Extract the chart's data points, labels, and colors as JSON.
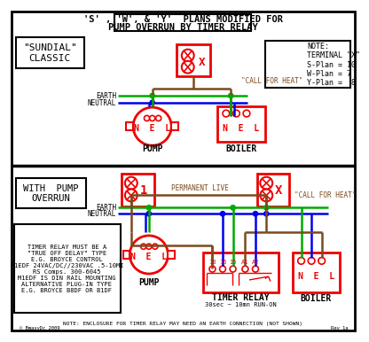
{
  "title_line1": "'S' , 'W', & 'Y'  PLANS MODIFIED FOR",
  "title_line2": "PUMP OVERRUN BY TIMER RELAY",
  "bg_color": "#ffffff",
  "brown": "#7B4A1E",
  "green": "#00AA00",
  "blue": "#0000EE",
  "red": "#EE0000",
  "black": "#000000",
  "note_top": "NOTE:\nTERMINAL \"X\"\nS-Plan = 10\nW-Plan = 7\nY-Plan =  8",
  "note_bottom": "TIMER RELAY MUST BE A\n\"TRUE OFF DELAY\" TYPE\nE.G. BROYCE CONTROL\nM1EDF 24VAC/DC//230VAC .5-10MI\nRS Comps. 300-6045\nM1EDF IS DIN RAIL MOUNTING\nALTERNATIVE PLUG-IN TYPE\nE.G. BROYCE B8DF OR B1DF",
  "note_enclosure": "NOTE: ENCLOSURE FOR TIMER RELAY MAY NEED AN EARTH CONNECTION (NOT SHOWN)",
  "label_sundial": "\"SUNDIAL\"\nCLASSIC",
  "label_pump_overrun": "WITH  PUMP\nOVERRUN",
  "label_earth": "EARTH",
  "label_neutral": "NEUTRAL",
  "label_pump": "PUMP",
  "label_boiler": "BOILER",
  "label_timer": "TIMER RELAY",
  "label_timer_sub": "30sec ~ 10mn RUN-ON",
  "label_call_heat": "\"CALL FOR HEAT\"",
  "label_perm_live": "PERMANENT LIVE",
  "label_copyright": "© BmasyDc 2009",
  "label_rev": "Rev 1a"
}
